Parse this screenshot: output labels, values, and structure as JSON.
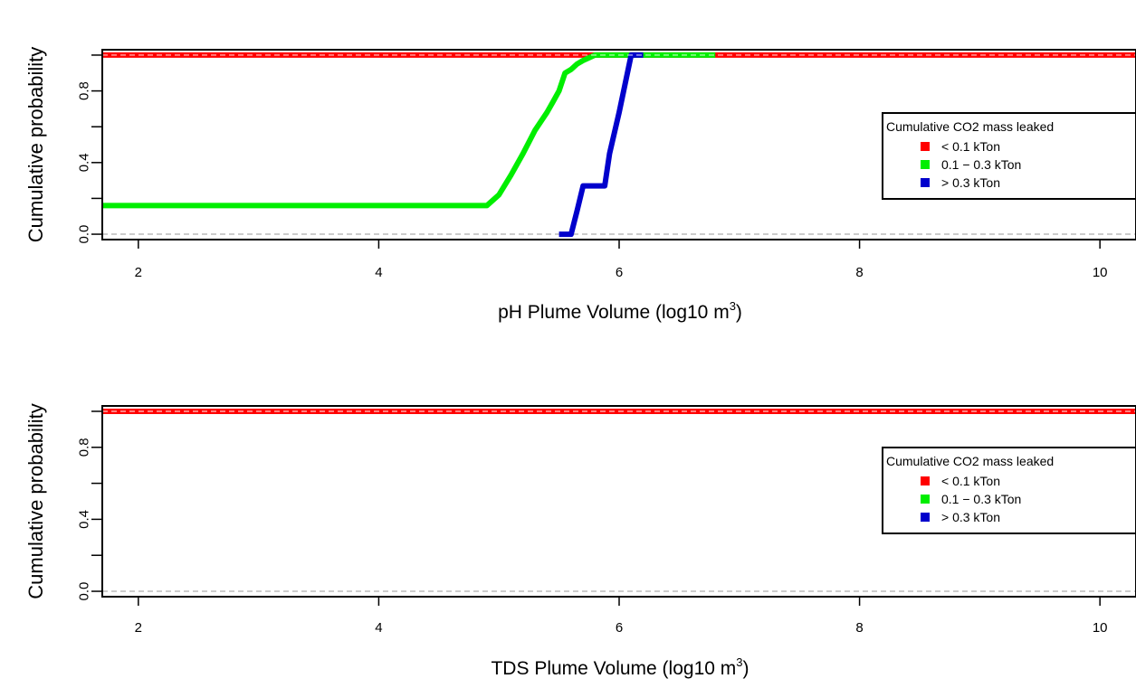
{
  "chart_data": [
    {
      "type": "line",
      "title": "",
      "xlabel": "pH Plume Volume (log10 m",
      "xlabel_sup": "3",
      "xlabel_close": ")",
      "ylabel": "Cumulative probability",
      "xlim": [
        1.7,
        10.3
      ],
      "ylim": [
        -0.03,
        1.03
      ],
      "xticks": [
        2,
        4,
        6,
        8,
        10
      ],
      "yticks": [
        0.0,
        0.4,
        0.8
      ],
      "reference_lines": [
        0,
        1
      ],
      "grid": false,
      "legend": {
        "title": "Cumulative CO2 mass leaked",
        "placement": "right",
        "entries": [
          "< 0.1  kTon",
          "0.1 − 0.3  kTon",
          "> 0.3  kTon"
        ]
      },
      "series": [
        {
          "name": "< 0.1  kTon",
          "color": "#ff0000",
          "x": [
            1.7,
            10.3
          ],
          "y": [
            1.0,
            1.0
          ]
        },
        {
          "name": "0.1 − 0.3  kTon",
          "color": "#00ee00",
          "x": [
            1.7,
            4.9,
            5.0,
            5.1,
            5.2,
            5.3,
            5.4,
            5.45,
            5.5,
            5.55,
            5.6,
            5.65,
            5.7,
            5.8,
            6.0,
            6.4,
            6.8
          ],
          "y": [
            0.16,
            0.16,
            0.22,
            0.33,
            0.45,
            0.58,
            0.68,
            0.74,
            0.8,
            0.9,
            0.92,
            0.95,
            0.97,
            1.0,
            1.0,
            1.0,
            1.0
          ]
        },
        {
          "name": "> 0.3  kTon",
          "color": "#0000cc",
          "x": [
            5.5,
            5.6,
            5.65,
            5.7,
            5.78,
            5.82,
            5.88,
            5.92,
            6.0,
            6.1,
            6.2
          ],
          "y": [
            0.0,
            0.0,
            0.13,
            0.27,
            0.27,
            0.27,
            0.27,
            0.45,
            0.68,
            1.0,
            1.0
          ]
        }
      ]
    },
    {
      "type": "line",
      "title": "",
      "xlabel": "TDS Plume Volume (log10 m",
      "xlabel_sup": "3",
      "xlabel_close": ")",
      "ylabel": "Cumulative probability",
      "xlim": [
        1.7,
        10.3
      ],
      "ylim": [
        -0.03,
        1.03
      ],
      "xticks": [
        2,
        4,
        6,
        8,
        10
      ],
      "yticks": [
        0.0,
        0.4,
        0.8
      ],
      "reference_lines": [
        0,
        1
      ],
      "grid": false,
      "legend": {
        "title": "Cumulative CO2 mass leaked",
        "placement": "right",
        "entries": [
          "< 0.1  kTon",
          "0.1 − 0.3  kTon",
          "> 0.3  kTon"
        ]
      },
      "series": [
        {
          "name": "< 0.1  kTon",
          "color": "#ff0000",
          "x": [
            1.7,
            10.3
          ],
          "y": [
            1.0,
            1.0
          ]
        }
      ]
    }
  ],
  "colors": {
    "low": "#ff0000",
    "mid": "#00ee00",
    "high": "#0000cc",
    "reference": "#bbbbbb"
  }
}
